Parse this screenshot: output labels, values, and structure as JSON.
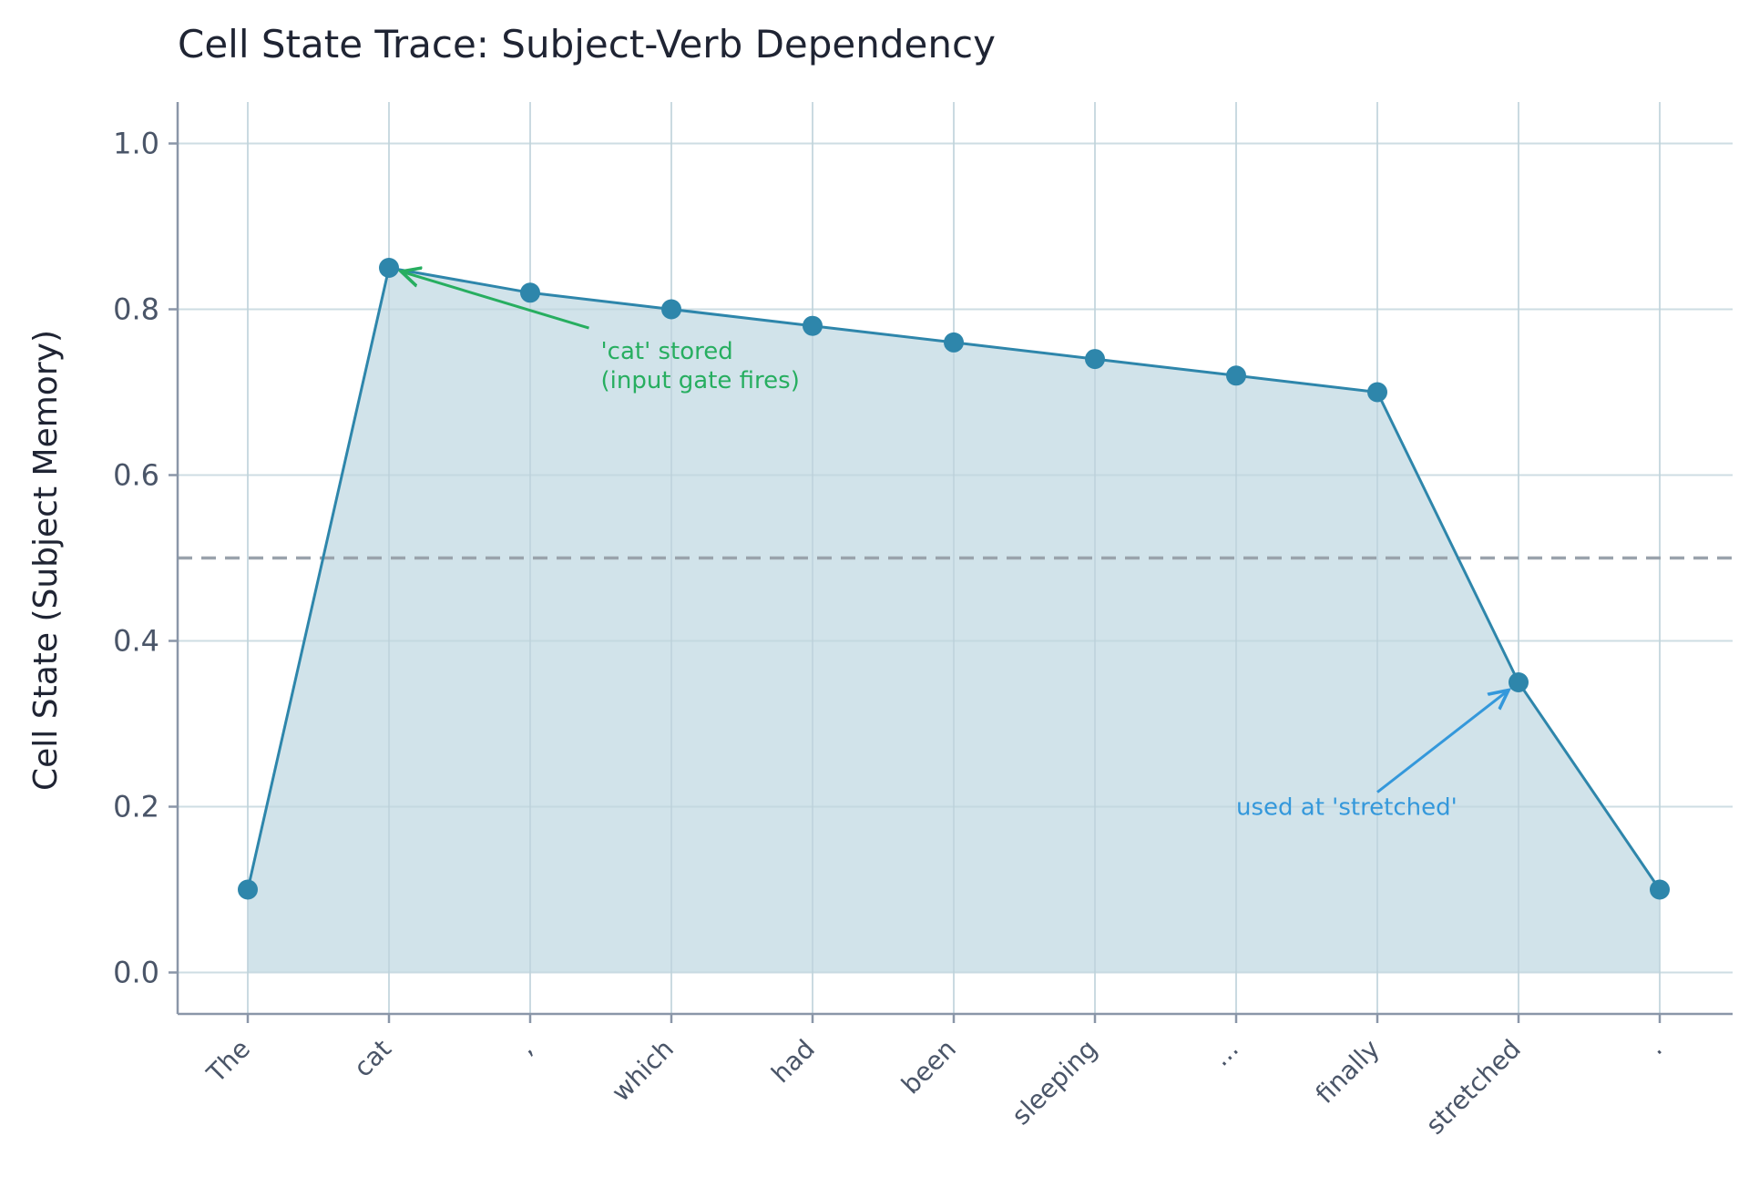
{
  "chart_data": {
    "type": "line",
    "title": "Cell State Trace: Subject-Verb Dependency",
    "xlabel": "",
    "ylabel": "Cell State (Subject Memory)",
    "categories": [
      "The",
      "cat",
      ",",
      "which",
      "had",
      "been",
      "sleeping",
      "...",
      "finally",
      "stretched",
      "."
    ],
    "values": [
      0.1,
      0.85,
      0.82,
      0.8,
      0.78,
      0.76,
      0.74,
      0.72,
      0.7,
      0.35,
      0.1
    ],
    "ylim": [
      -0.05,
      1.05
    ],
    "yticks": [
      0.0,
      0.2,
      0.4,
      0.6,
      0.8,
      1.0
    ],
    "ytick_labels": [
      "0.0",
      "0.2",
      "0.4",
      "0.6",
      "0.8",
      "1.0"
    ],
    "threshold": 0.5,
    "grid": true,
    "area_fill": true,
    "annotations": [
      {
        "lines": [
          "'cat' stored",
          "(input gate fires)"
        ],
        "target_category": "cat",
        "target_value": 0.85,
        "text_x_index": 2.5,
        "text_value": 0.74,
        "color": "#27ae60"
      },
      {
        "lines": [
          "used at 'stretched'"
        ],
        "target_category": "stretched",
        "target_value": 0.35,
        "text_x_index": 7.0,
        "text_value": 0.19,
        "color": "#3498db"
      }
    ],
    "colors": {
      "line": "#2e86ab",
      "fill": "#cce0e8",
      "threshold": "#9aa3ac",
      "grid": "#e3eaee",
      "axis": "#8a96a8"
    }
  }
}
